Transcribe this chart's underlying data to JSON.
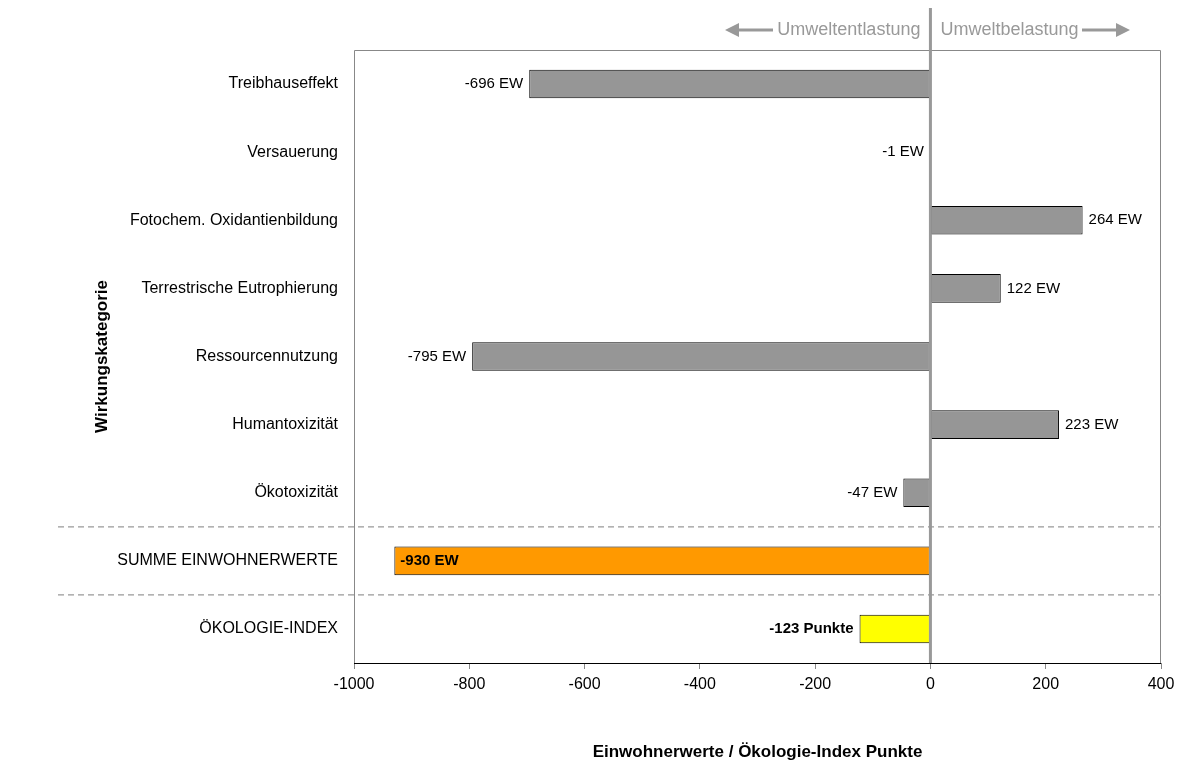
{
  "chart_data": {
    "type": "bar",
    "orientation": "horizontal",
    "xlabel": "Einwohnerwerte / Ökologie-Index Punkte",
    "ylabel": "Wirkungskategorie",
    "categories": [
      "Treibhauseffekt",
      "Versauerung",
      "Fotochem. Oxidantienbildung",
      "Terrestrische Eutrophierung",
      "Ressourcennutzung",
      "Humantoxizität",
      "Ökotoxizität",
      "SUMME EINWOHNERWERTE",
      "ÖKOLOGIE-INDEX"
    ],
    "values": [
      -696,
      -1,
      264,
      122,
      -795,
      223,
      -47,
      -930,
      -123
    ],
    "value_labels": [
      "-696 EW",
      "-1 EW",
      "264 EW",
      "122 EW",
      "-795 EW",
      "223 EW",
      "-47 EW",
      "-930 EW",
      "-123 Punkte"
    ],
    "colors": [
      "#969696",
      "#969696",
      "#969696",
      "#969696",
      "#969696",
      "#969696",
      "#969696",
      "#ff9900",
      "#ffff00"
    ],
    "xlim": [
      -1000,
      400
    ],
    "xticks": [
      -1000,
      -800,
      -600,
      -400,
      -200,
      0,
      200,
      400
    ],
    "ref_lines": [
      {
        "axis": "x",
        "value": 0,
        "color": "#999999"
      }
    ],
    "annotations": [
      "Umweltentlastung",
      "Umweltbelastung"
    ]
  }
}
